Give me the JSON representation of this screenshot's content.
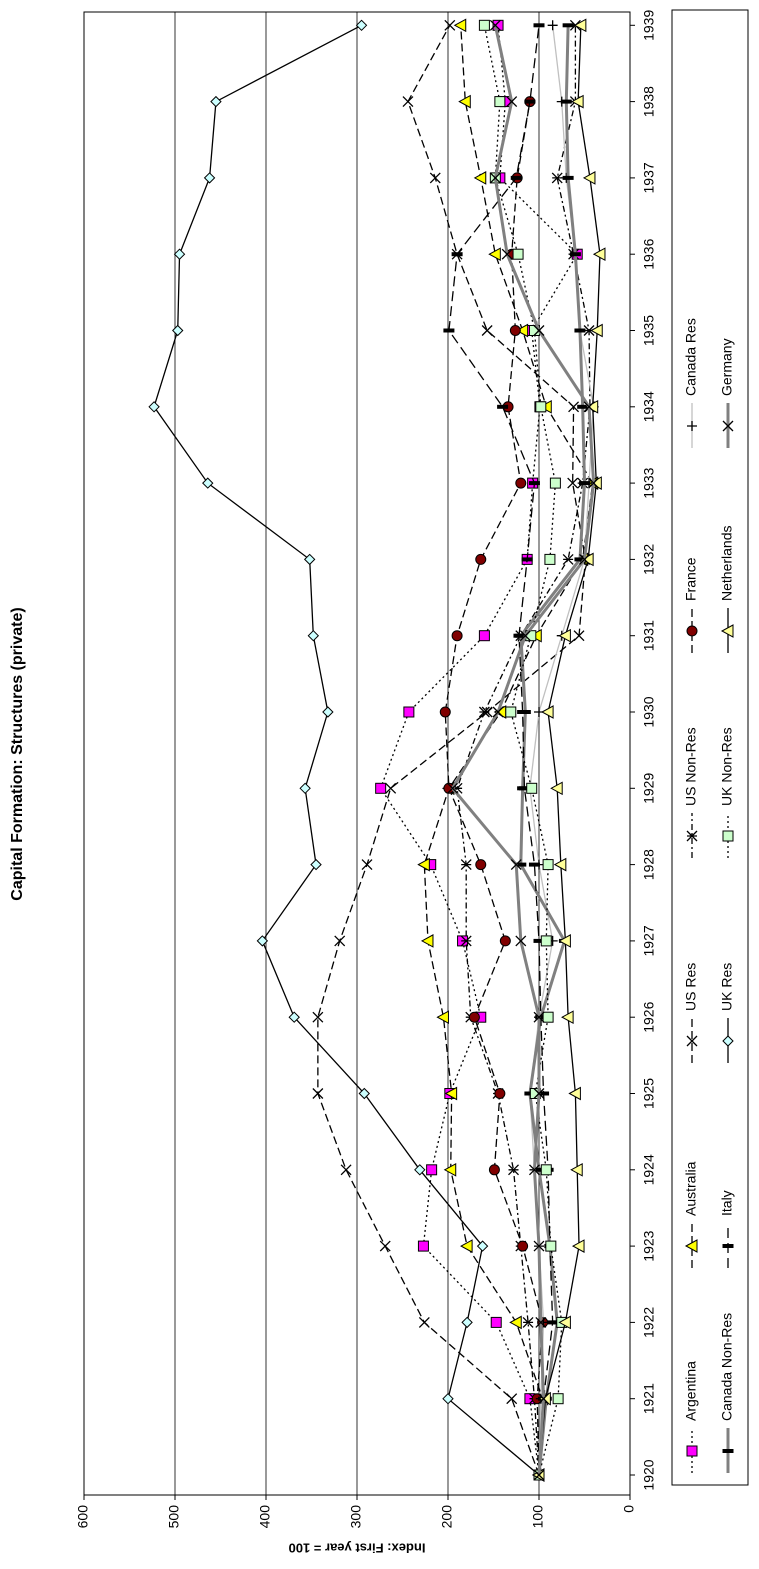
{
  "chart_data": {
    "type": "line",
    "title": "Capital Formation: Structures (private)",
    "y_label": "Index: First year = 100",
    "categories": [
      "1920",
      "1921",
      "1922",
      "1923",
      "1924",
      "1925",
      "1926",
      "1927",
      "1928",
      "1929",
      "1930",
      "1931",
      "1932",
      "1933",
      "1934",
      "1935",
      "1936",
      "1937",
      "1938",
      "1939"
    ],
    "ylim": [
      0,
      600
    ],
    "yticks": [
      0,
      100,
      200,
      300,
      400,
      500,
      600
    ],
    "grid": true,
    "legend": "bottom",
    "series": [
      {
        "name": "Argentina",
        "color": "#000000",
        "dash": "2,3",
        "marker": "square",
        "marker_color": "#ff00ff",
        "values": [
          100,
          110,
          147,
          227,
          218,
          198,
          164,
          184,
          219,
          274,
          243,
          160,
          113,
          107,
          99,
          108,
          58,
          143,
          137,
          145
        ]
      },
      {
        "name": "Australia",
        "color": "#000000",
        "dash": "8,4",
        "marker": "triangle",
        "marker_color": "#ffff00",
        "values": [
          100,
          96,
          125,
          179,
          197,
          196,
          205,
          222,
          226,
          199,
          142,
          103,
          52,
          41,
          92,
          118,
          148,
          164,
          181,
          186
        ]
      },
      {
        "name": "US Res",
        "color": "#000000",
        "dash": "8,4",
        "marker": "x",
        "marker_color": "#000000",
        "values": [
          100,
          130,
          226,
          269,
          312,
          343,
          343,
          319,
          289,
          263,
          157,
          56,
          49,
          63,
          62,
          157,
          190,
          214,
          244,
          198
        ]
      },
      {
        "name": "US Non-Res",
        "color": "#000000",
        "dash": "6,3,2,3",
        "marker": "star",
        "marker_color": "#000000",
        "values": [
          100,
          105,
          112,
          120,
          128,
          145,
          175,
          180,
          180,
          190,
          160,
          120,
          68,
          52,
          44,
          45,
          62,
          80,
          60,
          60
        ]
      },
      {
        "name": "France",
        "color": "#000000",
        "dash": "8,4",
        "marker": "circle",
        "marker_color": "#800000",
        "values": [
          100,
          102,
          96,
          118,
          149,
          143,
          171,
          137,
          164,
          199,
          203,
          190,
          164,
          120,
          134,
          126,
          130,
          124,
          110,
          null
        ]
      },
      {
        "name": "Canada Res",
        "color": "#c0c0c0",
        "dash": "none",
        "marker": "plus",
        "marker_color": "#000000",
        "values": [
          100,
          98,
          95,
          100,
          105,
          110,
          100,
          85,
          100,
          110,
          100,
          75,
          50,
          45,
          40,
          55,
          60,
          70,
          75,
          85
        ]
      },
      {
        "name": "Canada Non-Res",
        "color": "#808080",
        "dash": "none",
        "marker": "bar",
        "marker_color": "#000000",
        "values": [
          100,
          92,
          80,
          88,
          100,
          110,
          98,
          72,
          120,
          118,
          115,
          120,
          55,
          50,
          52,
          55,
          60,
          68,
          70,
          68
        ]
      },
      {
        "name": "Italy",
        "color": "#000000",
        "dash": "10,5",
        "marker": "bar",
        "marker_color": "#000000",
        "values": [
          100,
          95,
          85,
          88,
          90,
          95,
          98,
          100,
          105,
          116,
          118,
          122,
          113,
          105,
          140,
          199,
          190,
          125,
          110,
          100
        ]
      },
      {
        "name": "UK Res",
        "color": "#000000",
        "dash": "none",
        "marker": "diamond",
        "marker_color": "#ccffff",
        "values": [
          100,
          200,
          179,
          162,
          231,
          292,
          369,
          404,
          345,
          357,
          332,
          348,
          352,
          464,
          523,
          497,
          495,
          462,
          455,
          295
        ]
      },
      {
        "name": "UK Non-Res",
        "color": "#000000",
        "dash": "2,3",
        "marker": "square",
        "marker_color": "#ccffcc",
        "values": [
          100,
          79,
          75,
          87,
          92,
          104,
          90,
          92,
          90,
          108,
          131,
          109,
          88,
          82,
          98,
          105,
          123,
          148,
          143,
          160
        ]
      },
      {
        "name": "Netherlands",
        "color": "#000000",
        "dash": "none",
        "marker": "triangle",
        "marker_color": "#ffff99",
        "values": [
          100,
          93,
          71,
          56,
          58,
          60,
          68,
          71,
          76,
          80,
          90,
          71,
          46,
          37,
          41,
          36,
          33,
          44,
          57,
          54
        ]
      },
      {
        "name": "Germany",
        "color": "#808080",
        "dash": "none",
        "marker": "x",
        "marker_color": "#000000",
        "values": [
          100,
          95,
          98,
          100,
          105,
          100,
          100,
          120,
          125,
          195,
          145,
          115,
          50,
          40,
          45,
          100,
          135,
          148,
          130,
          148
        ]
      }
    ]
  }
}
